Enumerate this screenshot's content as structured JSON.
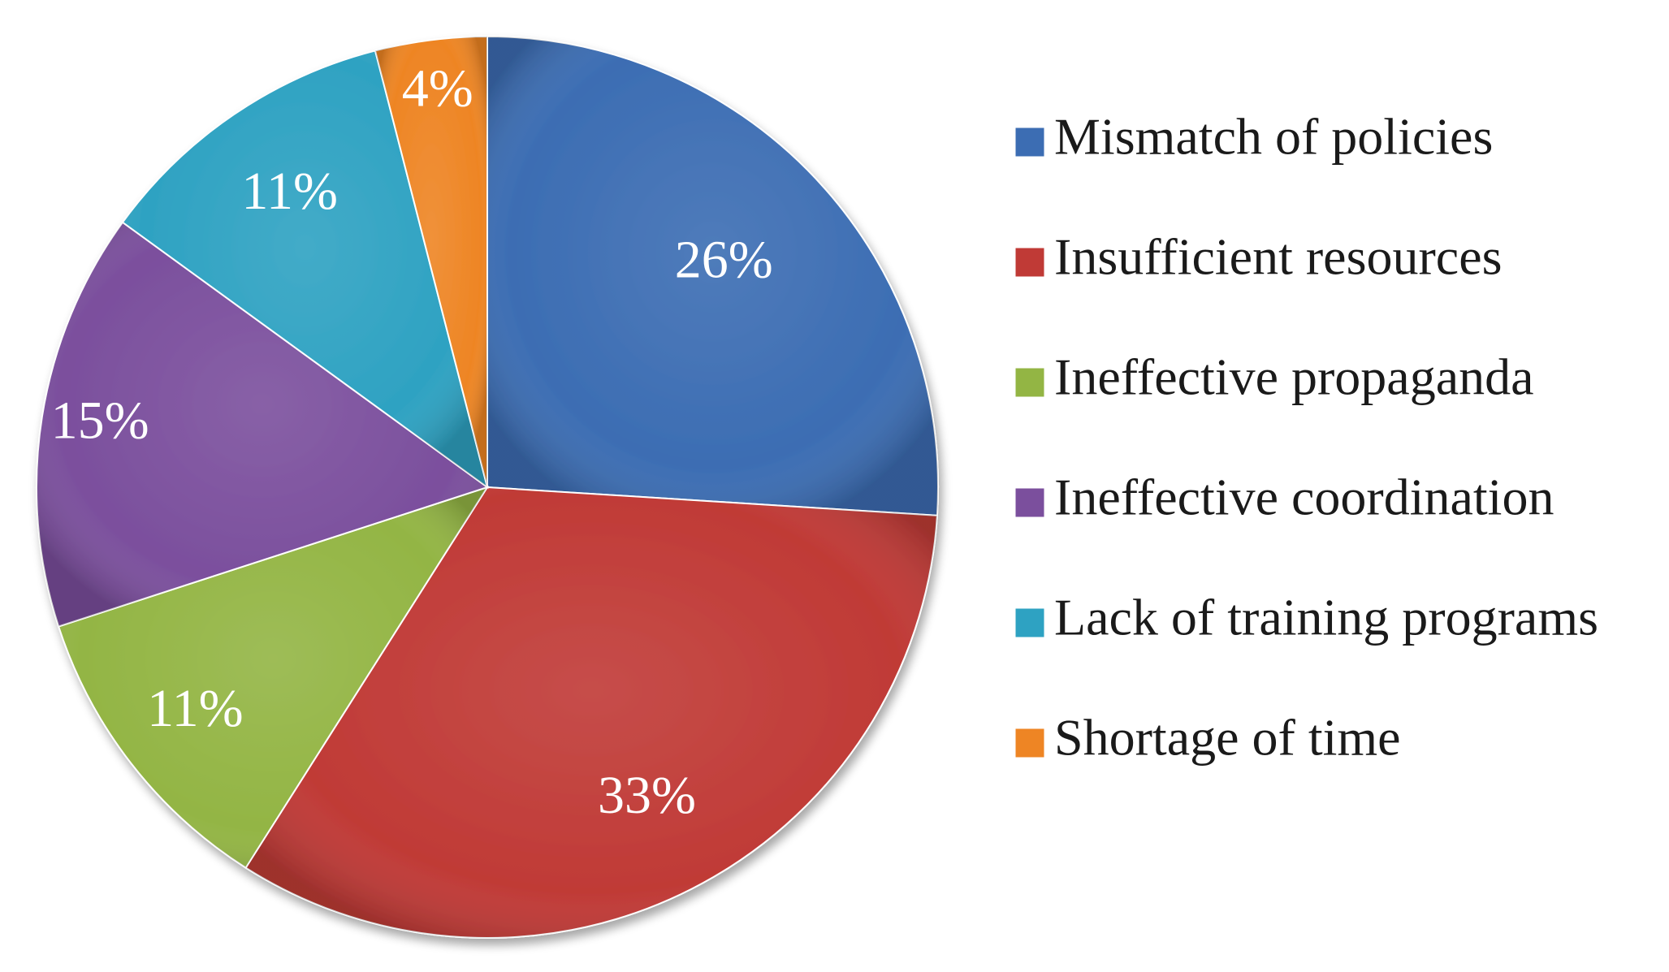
{
  "chart_data": {
    "type": "pie",
    "title": "",
    "legend_position": "right",
    "start_angle_deg": 0,
    "direction": "clockwise",
    "categories": [
      "Mismatch of policies",
      "Insufficient resources",
      "Ineffective propaganda",
      "Ineffective coordination",
      "Lack of training programs",
      "Shortage of time"
    ],
    "values": [
      26,
      33,
      11,
      15,
      11,
      4
    ],
    "value_labels": [
      "26%",
      "33%",
      "11%",
      "15%",
      "11%",
      "4%"
    ],
    "colors": [
      "#3C6DB3",
      "#C03A36",
      "#93B544",
      "#7B4F9D",
      "#2EA2C2",
      "#EE8524"
    ]
  }
}
